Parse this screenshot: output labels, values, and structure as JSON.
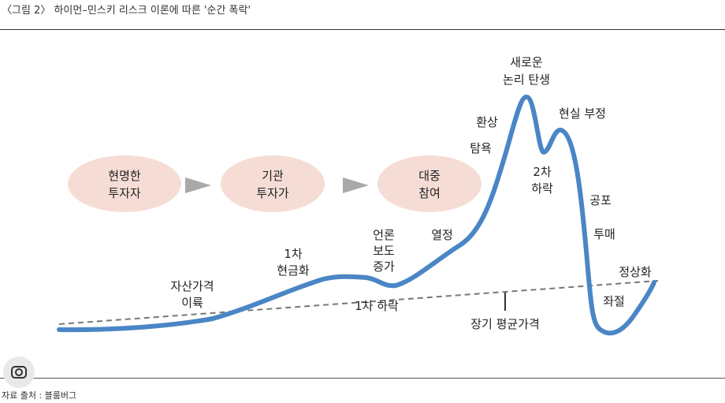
{
  "title": "〈그림 2〉 하이먼–민스키 리스크 이론에 따른 '순간 폭락'",
  "source": "자료 출처 : 블룸버그",
  "stages": [
    {
      "line1": "현명한",
      "line2": "투자자"
    },
    {
      "line1": "기관",
      "line2": "투자가"
    },
    {
      "line1": "대중",
      "line2": "참여"
    }
  ],
  "labels": {
    "asset_profit": [
      "자산가격",
      "이륙"
    ],
    "first_cash": [
      "1차",
      "현금화"
    ],
    "news": [
      "언론",
      "보도",
      "증가"
    ],
    "enthusiasm": "열정",
    "greed": "탐욕",
    "euphoria": "환상",
    "new_paradigm": [
      "새로운",
      "논리 탄생"
    ],
    "second_decline": [
      "2차",
      "하락"
    ],
    "denial": "현실 부정",
    "fear": "공포",
    "capitulation": "투매",
    "despair": "좌절",
    "normalization": "정상화",
    "first_decline": "1차 하락",
    "long_term_mean": "장기 평균가격"
  },
  "colors": {
    "curve": "#4a86c5",
    "stage_fill": "#f5ddd6",
    "arrow": "#a9a9a9",
    "trend": "#777777"
  }
}
